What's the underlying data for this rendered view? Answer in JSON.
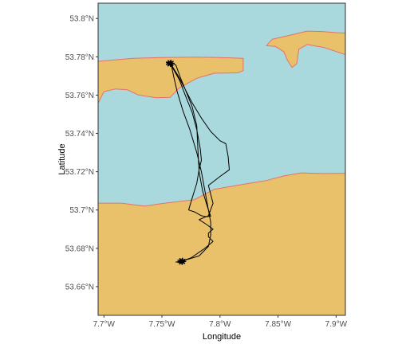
{
  "chart_data": {
    "type": "map",
    "xlabel": "Longitude",
    "ylabel": "Latitude",
    "xlim": [
      -7.695,
      -7.908
    ],
    "ylim": [
      53.645,
      53.808
    ],
    "x_tick_values": [
      -7.7,
      -7.75,
      -7.8,
      -7.85,
      -7.9
    ],
    "x_tick_labels": [
      "7.7°W",
      "7.75°W",
      "7.8°W",
      "7.85°W",
      "7.9°W"
    ],
    "y_tick_values": [
      53.8,
      53.78,
      53.76,
      53.74,
      53.72,
      53.7,
      53.68,
      53.66
    ],
    "y_tick_labels": [
      "53.8°N",
      "53.78°N",
      "53.76°N",
      "53.74°N",
      "53.72°N",
      "53.7°N",
      "53.68°N",
      "53.66°N"
    ],
    "colors": {
      "water": "#aad9dd",
      "land": "#e8c16a",
      "coastline": "#e8706a",
      "track": "#000000"
    },
    "land": {
      "mainland": [
        [
          -7.695,
          53.7036
        ],
        [
          -7.715,
          53.7036
        ],
        [
          -7.735,
          53.702
        ],
        [
          -7.75,
          53.7034
        ],
        [
          -7.778,
          53.7054
        ],
        [
          -7.79,
          53.7092
        ],
        [
          -7.795,
          53.7108
        ],
        [
          -7.82,
          53.7134
        ],
        [
          -7.84,
          53.7154
        ],
        [
          -7.855,
          53.7178
        ],
        [
          -7.87,
          53.7194
        ],
        [
          -7.89,
          53.719
        ],
        [
          -7.908,
          53.7192
        ],
        [
          -7.908,
          53.645
        ],
        [
          -7.695,
          53.645
        ]
      ],
      "island_west": [
        [
          -7.695,
          53.7558
        ],
        [
          -7.7,
          53.7618
        ],
        [
          -7.71,
          53.7632
        ],
        [
          -7.72,
          53.7628
        ],
        [
          -7.73,
          53.76
        ],
        [
          -7.745,
          53.7586
        ],
        [
          -7.757,
          53.7588
        ],
        [
          -7.765,
          53.7638
        ],
        [
          -7.78,
          53.7688
        ],
        [
          -7.795,
          53.7714
        ],
        [
          -7.815,
          53.7716
        ],
        [
          -7.82,
          53.7728
        ],
        [
          -7.82,
          53.7792
        ],
        [
          -7.8,
          53.7796
        ],
        [
          -7.78,
          53.7798
        ],
        [
          -7.75,
          53.7796
        ],
        [
          -7.725,
          53.7792
        ],
        [
          -7.705,
          53.7782
        ],
        [
          -7.695,
          53.7776
        ]
      ],
      "island_east": [
        [
          -7.908,
          53.7812
        ],
        [
          -7.89,
          53.7848
        ],
        [
          -7.875,
          53.7864
        ],
        [
          -7.868,
          53.784
        ],
        [
          -7.866,
          53.7764
        ],
        [
          -7.862,
          53.7744
        ],
        [
          -7.858,
          53.7784
        ],
        [
          -7.855,
          53.7826
        ],
        [
          -7.848,
          53.7854
        ],
        [
          -7.84,
          53.7858
        ],
        [
          -7.845,
          53.7892
        ],
        [
          -7.86,
          53.7912
        ],
        [
          -7.875,
          53.7934
        ],
        [
          -7.888,
          53.7932
        ],
        [
          -7.9,
          53.7926
        ],
        [
          -7.908,
          53.7924
        ]
      ]
    },
    "track": [
      [
        -7.758,
        53.777
      ],
      [
        -7.762,
        53.7757
      ],
      [
        -7.766,
        53.769
      ],
      [
        -7.77,
        53.763
      ],
      [
        -7.776,
        53.756
      ],
      [
        -7.784,
        53.748
      ],
      [
        -7.792,
        53.741
      ],
      [
        -7.8,
        53.7362
      ],
      [
        -7.805,
        53.7346
      ],
      [
        -7.807,
        53.728
      ],
      [
        -7.808,
        53.721
      ],
      [
        -7.8,
        53.7175
      ],
      [
        -7.79,
        53.7128
      ],
      [
        -7.794,
        53.7035
      ],
      [
        -7.79,
        53.697
      ],
      [
        -7.782,
        53.695
      ],
      [
        -7.788,
        53.6926
      ],
      [
        -7.794,
        53.69
      ],
      [
        -7.79,
        53.688
      ],
      [
        -7.79,
        53.686
      ],
      [
        -7.794,
        53.6836
      ],
      [
        -7.787,
        53.68
      ],
      [
        -7.775,
        53.675
      ],
      [
        -7.768,
        53.6735
      ],
      [
        -7.762,
        53.6728
      ],
      [
        -7.77,
        53.6738
      ],
      [
        -7.782,
        53.676
      ],
      [
        -7.79,
        53.681
      ],
      [
        -7.792,
        53.687
      ],
      [
        -7.792,
        53.6935
      ],
      [
        -7.79,
        53.7
      ],
      [
        -7.785,
        53.71
      ],
      [
        -7.782,
        53.72
      ],
      [
        -7.781,
        53.731
      ],
      [
        -7.78,
        53.744
      ],
      [
        -7.776,
        53.754
      ],
      [
        -7.77,
        53.763
      ],
      [
        -7.764,
        53.77
      ],
      [
        -7.759,
        53.775
      ],
      [
        -7.757,
        53.7772
      ],
      [
        -7.759,
        53.7745
      ],
      [
        -7.765,
        53.768
      ],
      [
        -7.77,
        53.76
      ],
      [
        -7.776,
        53.751
      ],
      [
        -7.78,
        53.742
      ],
      [
        -7.783,
        53.732
      ],
      [
        -7.784,
        53.726
      ],
      [
        -7.782,
        53.721
      ],
      [
        -7.78,
        53.714
      ],
      [
        -7.776,
        53.7062
      ],
      [
        -7.773,
        53.7
      ],
      [
        -7.778,
        53.699
      ],
      [
        -7.784,
        53.697
      ],
      [
        -7.788,
        53.6965
      ],
      [
        -7.792,
        53.6968
      ],
      [
        -7.79,
        53.7
      ],
      [
        -7.787,
        53.71
      ],
      [
        -7.784,
        53.72
      ],
      [
        -7.78,
        53.73
      ],
      [
        -7.774,
        53.742
      ],
      [
        -7.768,
        53.752
      ],
      [
        -7.763,
        53.762
      ],
      [
        -7.76,
        53.77
      ],
      [
        -7.758,
        53.776
      ]
    ],
    "track_start_cluster": [
      -7.757,
      53.7766
    ],
    "track_end_cluster": [
      -7.767,
      53.6732
    ]
  }
}
